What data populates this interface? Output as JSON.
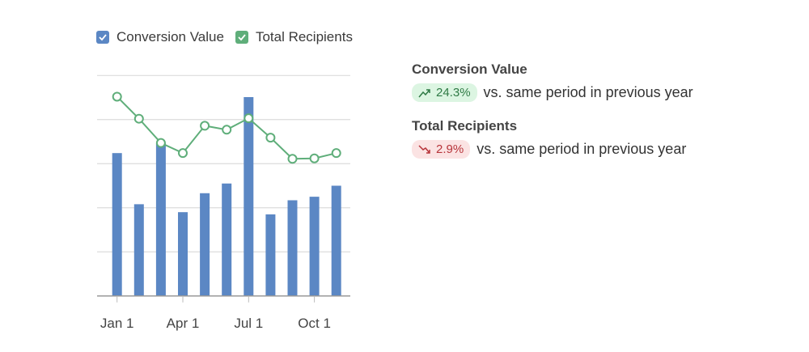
{
  "legend": [
    {
      "label": "Conversion Value",
      "color": "#5b87c4",
      "checked": true
    },
    {
      "label": "Total Recipients",
      "color": "#5fae7a",
      "checked": true
    }
  ],
  "chart_data": {
    "type": "bar+line",
    "x_tick_labels": [
      "Jan 1",
      "Apr 1",
      "Jul 1",
      "Oct 1"
    ],
    "x_tick_positions": [
      0,
      3,
      6,
      9
    ],
    "ylim": [
      0,
      5
    ],
    "grid": true,
    "legend_position": "top-left",
    "series": [
      {
        "name": "Conversion Value",
        "type": "bar",
        "color": "#5b87c4",
        "values": [
          3.24,
          2.08,
          3.47,
          1.9,
          2.33,
          2.55,
          4.51,
          1.85,
          2.17,
          2.25,
          2.5
        ]
      },
      {
        "name": "Total Recipients",
        "type": "line",
        "color": "#5fae7a",
        "values": [
          4.52,
          4.02,
          3.47,
          3.24,
          3.86,
          3.77,
          4.03,
          3.59,
          3.11,
          3.12,
          3.24
        ]
      }
    ]
  },
  "stats": [
    {
      "title": "Conversion Value",
      "change": "24.3%",
      "trend": "up",
      "badge_bg": "#dcf5e2",
      "badge_color": "#2f7a45",
      "note": "vs. same period in previous year"
    },
    {
      "title": "Total Recipients",
      "change": "2.9%",
      "trend": "down",
      "badge_bg": "#fbe3e3",
      "badge_color": "#b7343a",
      "note": "vs. same period in previous year"
    }
  ]
}
